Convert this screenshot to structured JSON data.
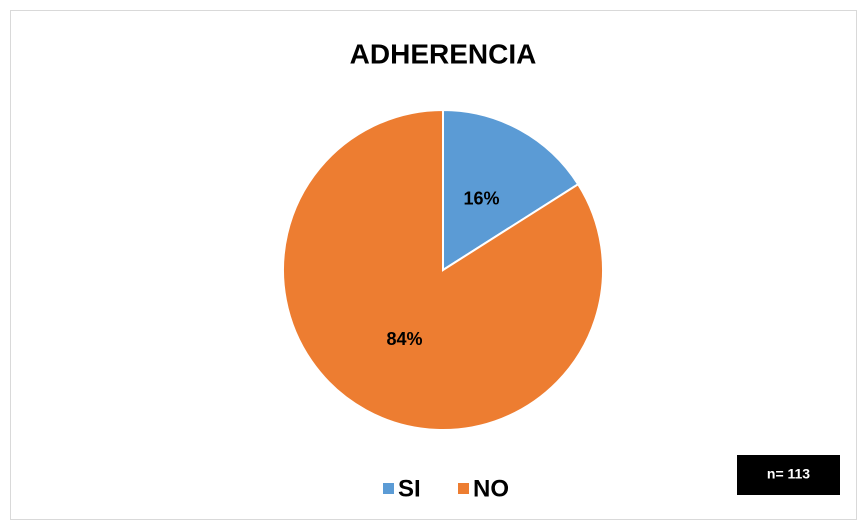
{
  "chart_data": {
    "type": "pie",
    "title": "ADHERENCIA",
    "categories": [
      "SI",
      "NO"
    ],
    "values": [
      16,
      84
    ],
    "value_labels": [
      "16%",
      "84%"
    ],
    "colors": [
      "#5b9bd5",
      "#ed7d31"
    ],
    "legend": "bottom",
    "annotation": "n= 113"
  }
}
